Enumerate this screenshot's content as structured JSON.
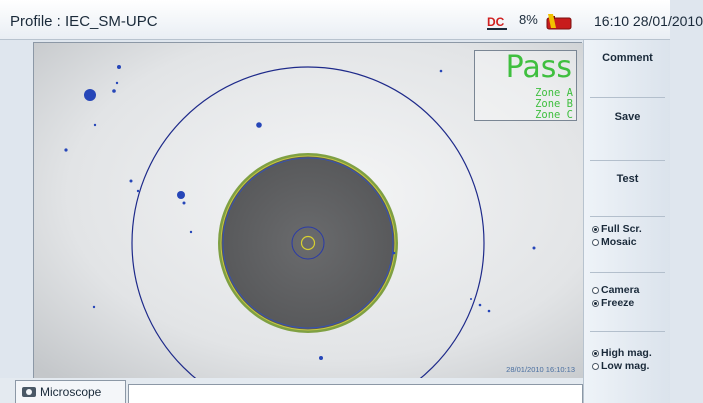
{
  "header": {
    "profile_title": "Profile : IEC_SM-UPC",
    "power_icon": "dc-power-icon",
    "battery_percent": "8%",
    "battery_icon": "battery-low-icon",
    "clock": "16:10 28/01/2010"
  },
  "inspection": {
    "result": "Pass",
    "zones": [
      "Zone A",
      "Zone B",
      "Zone C"
    ],
    "timestamp": "28/01/2010 16:10:13",
    "result_color": "#3fbf3f"
  },
  "sidebar": {
    "comment_label": "Comment",
    "save_label": "Save",
    "test_label": "Test",
    "display_modes": [
      {
        "label": "Full Scr.",
        "selected": true
      },
      {
        "label": "Mosaic",
        "selected": false
      }
    ],
    "source_modes": [
      {
        "label": "Camera",
        "selected": false
      },
      {
        "label": "Freeze",
        "selected": true
      }
    ],
    "magnification": [
      {
        "label": "High mag.",
        "selected": true
      },
      {
        "label": "Low mag.",
        "selected": false
      }
    ]
  },
  "bottom": {
    "tab_label": "Microscope",
    "tab_icon": "microscope-icon"
  }
}
